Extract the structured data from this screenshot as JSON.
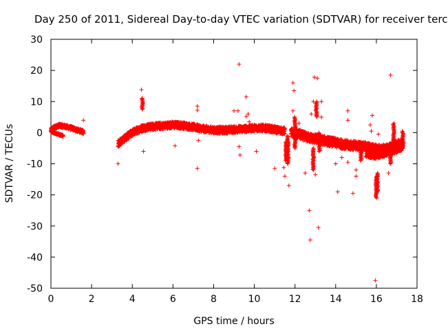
{
  "chart_data": {
    "type": "scatter",
    "title": "Day 250 of 2011, Sidereal Day-to-day VTEC variation (SDTVAR) for receiver terc",
    "xlabel": "GPS time / hours",
    "ylabel": "SDTVAR / TECUs",
    "xlim": [
      0,
      18
    ],
    "ylim": [
      -50,
      30
    ],
    "xticks": [
      0,
      2,
      4,
      6,
      8,
      10,
      12,
      14,
      16,
      18
    ],
    "yticks": [
      -50,
      -40,
      -30,
      -20,
      -10,
      0,
      10,
      20,
      30
    ],
    "marker": "+",
    "color": "#ff0000",
    "bands": [
      {
        "x": [
          0.0,
          0.2,
          0.4,
          0.7,
          1.0,
          1.3,
          1.6
        ],
        "y": [
          1.0,
          1.8,
          2.3,
          2.0,
          1.5,
          0.8,
          0.2
        ],
        "spread": 1.2
      },
      {
        "x": [
          0.0,
          0.3,
          0.6
        ],
        "y": [
          0.5,
          -0.4,
          -1.0
        ],
        "spread": 0.6
      },
      {
        "x": [
          3.3,
          3.6,
          4.0,
          4.5,
          5.0,
          5.5,
          6.0,
          6.5,
          7.0,
          7.5,
          8.0,
          8.5,
          9.0,
          9.5,
          10.0,
          10.5,
          11.0,
          11.5
        ],
        "y": [
          -3.5,
          -2.0,
          0.0,
          1.5,
          2.0,
          2.2,
          2.5,
          2.3,
          1.8,
          1.2,
          0.8,
          0.8,
          1.0,
          1.2,
          1.5,
          1.5,
          1.0,
          0.5
        ],
        "spread": 2.2
      },
      {
        "x": [
          11.8,
          12.2,
          12.6,
          13.0,
          13.4,
          13.8,
          14.2,
          14.6,
          15.0,
          15.4,
          15.8,
          16.2,
          16.6,
          17.0,
          17.3
        ],
        "y": [
          0.0,
          -0.5,
          -1.5,
          -2.0,
          -2.5,
          -3.0,
          -3.5,
          -4.0,
          -4.2,
          -4.5,
          -5.0,
          -5.5,
          -5.0,
          -4.0,
          -3.5
        ],
        "spread": 3.0
      },
      {
        "x": [
          15.5,
          16.0,
          16.5,
          17.0,
          17.3
        ],
        "y": [
          -7.0,
          -7.5,
          -6.5,
          -5.5,
          -4.5
        ],
        "spread": 2.0
      }
    ],
    "vertical_streaks": [
      {
        "x": 4.5,
        "y_from": 7.5,
        "y_to": 11.0
      },
      {
        "x": 11.65,
        "y_from": -10.0,
        "y_to": -1.0
      },
      {
        "x": 11.55,
        "y_from": -9.0,
        "y_to": -3.0
      },
      {
        "x": 12.0,
        "y_from": -5.0,
        "y_to": 5.0
      },
      {
        "x": 12.9,
        "y_from": -12.0,
        "y_to": -5.0
      },
      {
        "x": 13.05,
        "y_from": 5.0,
        "y_to": 10.0
      },
      {
        "x": 13.2,
        "y_from": -6.0,
        "y_to": 0.0
      },
      {
        "x": 15.25,
        "y_from": -9.0,
        "y_to": -5.0
      },
      {
        "x": 16.0,
        "y_from": -21.0,
        "y_to": -14.0
      },
      {
        "x": 16.05,
        "y_from": -19.0,
        "y_to": -13.0
      },
      {
        "x": 16.7,
        "y_from": -10.0,
        "y_to": -6.0
      },
      {
        "x": 16.85,
        "y_from": -3.0,
        "y_to": 3.0
      },
      {
        "x": 17.3,
        "y_from": -5.0,
        "y_to": 0.5
      }
    ],
    "points": [
      [
        1.6,
        4.0
      ],
      [
        3.3,
        -10.0
      ],
      [
        4.45,
        13.8
      ],
      [
        4.5,
        11.0
      ],
      [
        4.55,
        -6.0
      ],
      [
        6.1,
        -4.2
      ],
      [
        7.2,
        8.5
      ],
      [
        7.2,
        7.2
      ],
      [
        7.25,
        -2.5
      ],
      [
        7.2,
        -11.5
      ],
      [
        9.0,
        7.0
      ],
      [
        9.2,
        7.0
      ],
      [
        9.25,
        22.0
      ],
      [
        9.25,
        -4.5
      ],
      [
        9.3,
        -7.2
      ],
      [
        9.6,
        11.5
      ],
      [
        9.6,
        5.2
      ],
      [
        9.7,
        6.0
      ],
      [
        9.75,
        3.5
      ],
      [
        10.1,
        -6.0
      ],
      [
        11.0,
        -11.5
      ],
      [
        11.45,
        -11.2
      ],
      [
        11.5,
        -14.0
      ],
      [
        11.7,
        -17.0
      ],
      [
        11.9,
        7.0
      ],
      [
        11.9,
        16.0
      ],
      [
        11.95,
        13.5
      ],
      [
        12.2,
        3.0
      ],
      [
        12.5,
        -13.0
      ],
      [
        12.7,
        -25.0
      ],
      [
        12.75,
        -34.5
      ],
      [
        12.8,
        6.0
      ],
      [
        12.9,
        10.0
      ],
      [
        12.95,
        17.8
      ],
      [
        13.0,
        -13.5
      ],
      [
        13.1,
        17.5
      ],
      [
        13.15,
        -30.5
      ],
      [
        13.3,
        5.0
      ],
      [
        13.3,
        10.0
      ],
      [
        14.1,
        -19.0
      ],
      [
        14.0,
        -10.0
      ],
      [
        14.3,
        -8.0
      ],
      [
        14.6,
        7.0
      ],
      [
        14.6,
        4.0
      ],
      [
        14.6,
        -9.5
      ],
      [
        14.85,
        -19.5
      ],
      [
        15.0,
        -12.0
      ],
      [
        15.0,
        -14.0
      ],
      [
        15.7,
        2.5
      ],
      [
        15.75,
        0.5
      ],
      [
        15.8,
        5.5
      ],
      [
        15.95,
        -47.5
      ],
      [
        16.1,
        -0.5
      ],
      [
        16.6,
        -13.0
      ],
      [
        16.7,
        18.5
      ],
      [
        17.3,
        -2.0
      ]
    ]
  }
}
